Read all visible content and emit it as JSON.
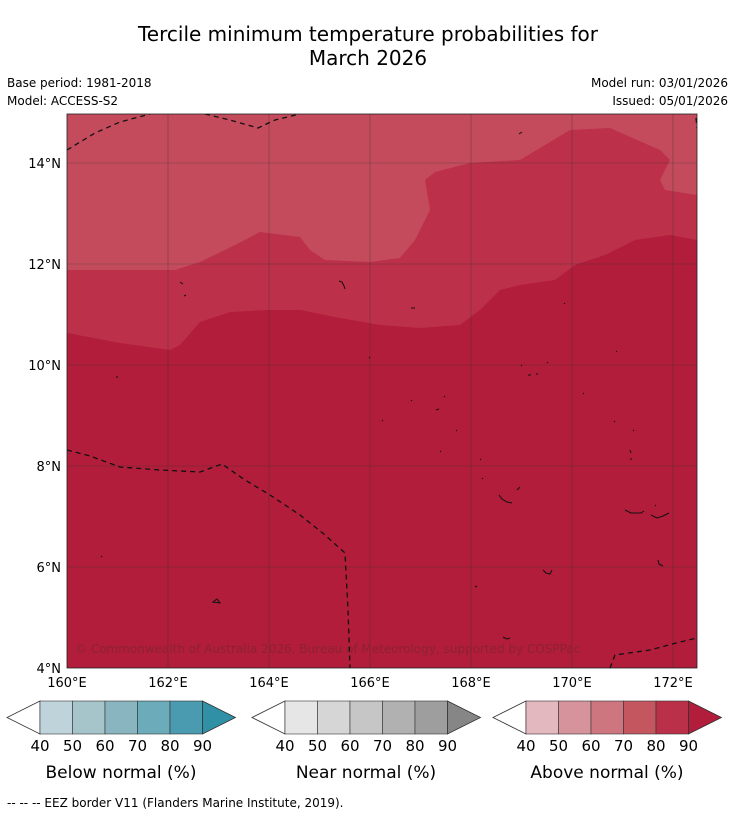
{
  "title_line1": "Tercile minimum temperature probabilities for",
  "title_line2": "March 2026",
  "meta": {
    "base_period": "Base period: 1981-2018",
    "model": "Model: ACCESS-S2",
    "model_run": "Model run: 03/01/2026",
    "issued": "Issued: 05/01/2026"
  },
  "map": {
    "lon_ticks": [
      "160°E",
      "162°E",
      "164°E",
      "166°E",
      "168°E",
      "170°E",
      "172°E"
    ],
    "lat_ticks": [
      "14°N",
      "12°N",
      "10°N",
      "8°N",
      "6°N",
      "4°N"
    ],
    "copyright": "© Commonwealth of Australia 2026, Bureau of Meteorology, supported by COSPPac",
    "colors": {
      "above_70": "#c44b5b",
      "above_80": "#bd3049",
      "above_90": "#b11d3a"
    }
  },
  "colorbars": [
    {
      "title": "Below normal (%)",
      "ticks": [
        "40",
        "50",
        "60",
        "70",
        "80",
        "90"
      ],
      "colors": [
        "#bfd4da",
        "#a5c5cb",
        "#88b5bf",
        "#6cabb9",
        "#4a9ab0",
        "#2f90a6"
      ]
    },
    {
      "title": "Near normal (%)",
      "ticks": [
        "40",
        "50",
        "60",
        "70",
        "80",
        "90"
      ],
      "colors": [
        "#e6e6e6",
        "#d6d6d6",
        "#c6c6c6",
        "#b1b1b1",
        "#9e9e9e",
        "#868686"
      ]
    },
    {
      "title": "Above normal (%)",
      "ticks": [
        "40",
        "50",
        "60",
        "70",
        "80",
        "90"
      ],
      "colors": [
        "#e3b8be",
        "#d6939b",
        "#cd7680",
        "#c4565f",
        "#b93048",
        "#b11d3a"
      ]
    }
  ],
  "footer": "--  --  -- EEZ border V11 (Flanders Marine Institute, 2019)."
}
